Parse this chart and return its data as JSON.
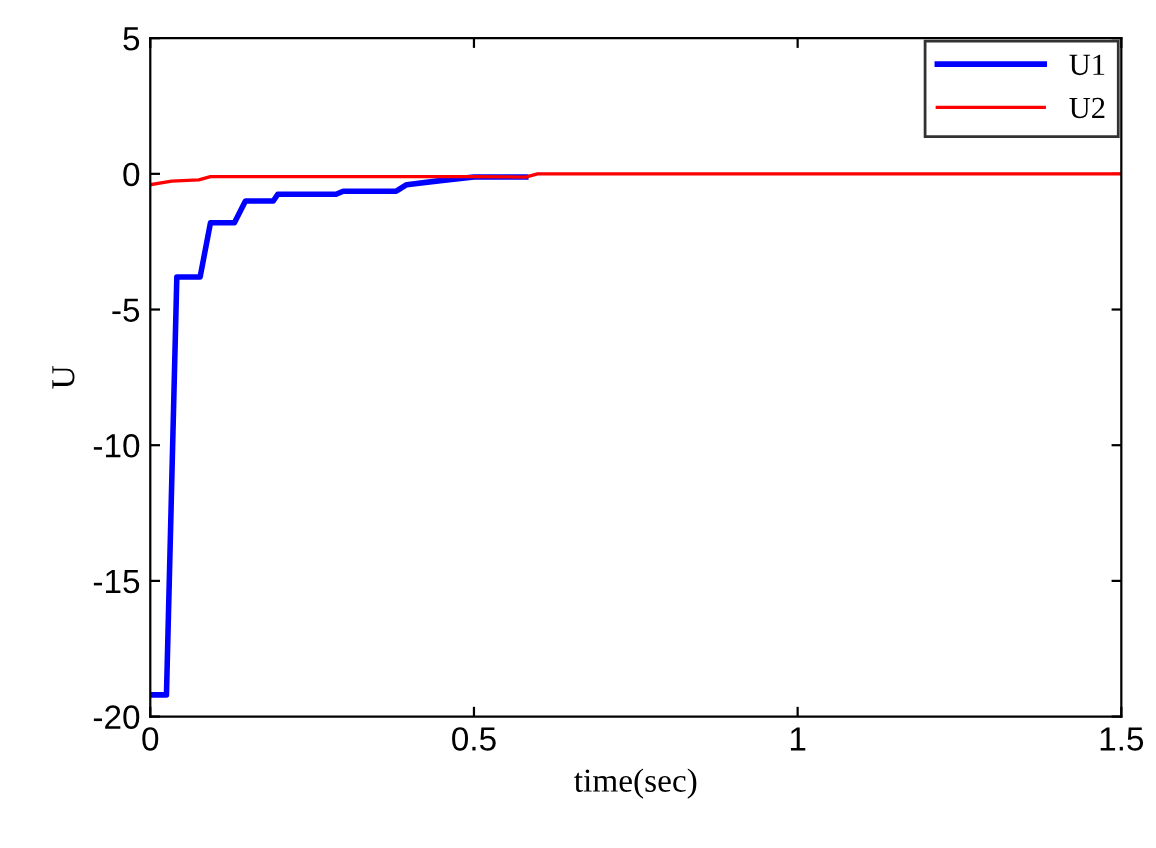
{
  "chart_data": {
    "type": "line",
    "xlabel": "time(sec)",
    "ylabel": "U",
    "xlim": [
      0,
      1.5
    ],
    "ylim": [
      -20,
      5
    ],
    "xticks": [
      0,
      0.5,
      1,
      1.5
    ],
    "yticks": [
      -20,
      -15,
      -10,
      -5,
      0,
      5
    ],
    "grid": false,
    "legend": "top right",
    "marker": "none",
    "line_style": "solid",
    "series": [
      {
        "name": "U1",
        "color": "#0000ff",
        "x": [
          0,
          0.025,
          0.041,
          0.077,
          0.093,
          0.13,
          0.147,
          0.19,
          0.197,
          0.287,
          0.298,
          0.38,
          0.396,
          0.448,
          0.5,
          0.58
        ],
        "values": [
          -19.2,
          -19.2,
          -3.8,
          -3.8,
          -1.8,
          -1.8,
          -1.0,
          -1.0,
          -0.75,
          -0.75,
          -0.64,
          -0.64,
          -0.4,
          -0.25,
          -0.12,
          -0.12
        ]
      },
      {
        "name": "U2",
        "color": "#ff0000",
        "x": [
          0,
          0.033,
          0.075,
          0.093,
          0.49,
          0.58,
          0.598,
          1.5
        ],
        "values": [
          -0.4,
          -0.27,
          -0.22,
          -0.1,
          -0.1,
          -0.12,
          0,
          0
        ]
      }
    ]
  }
}
